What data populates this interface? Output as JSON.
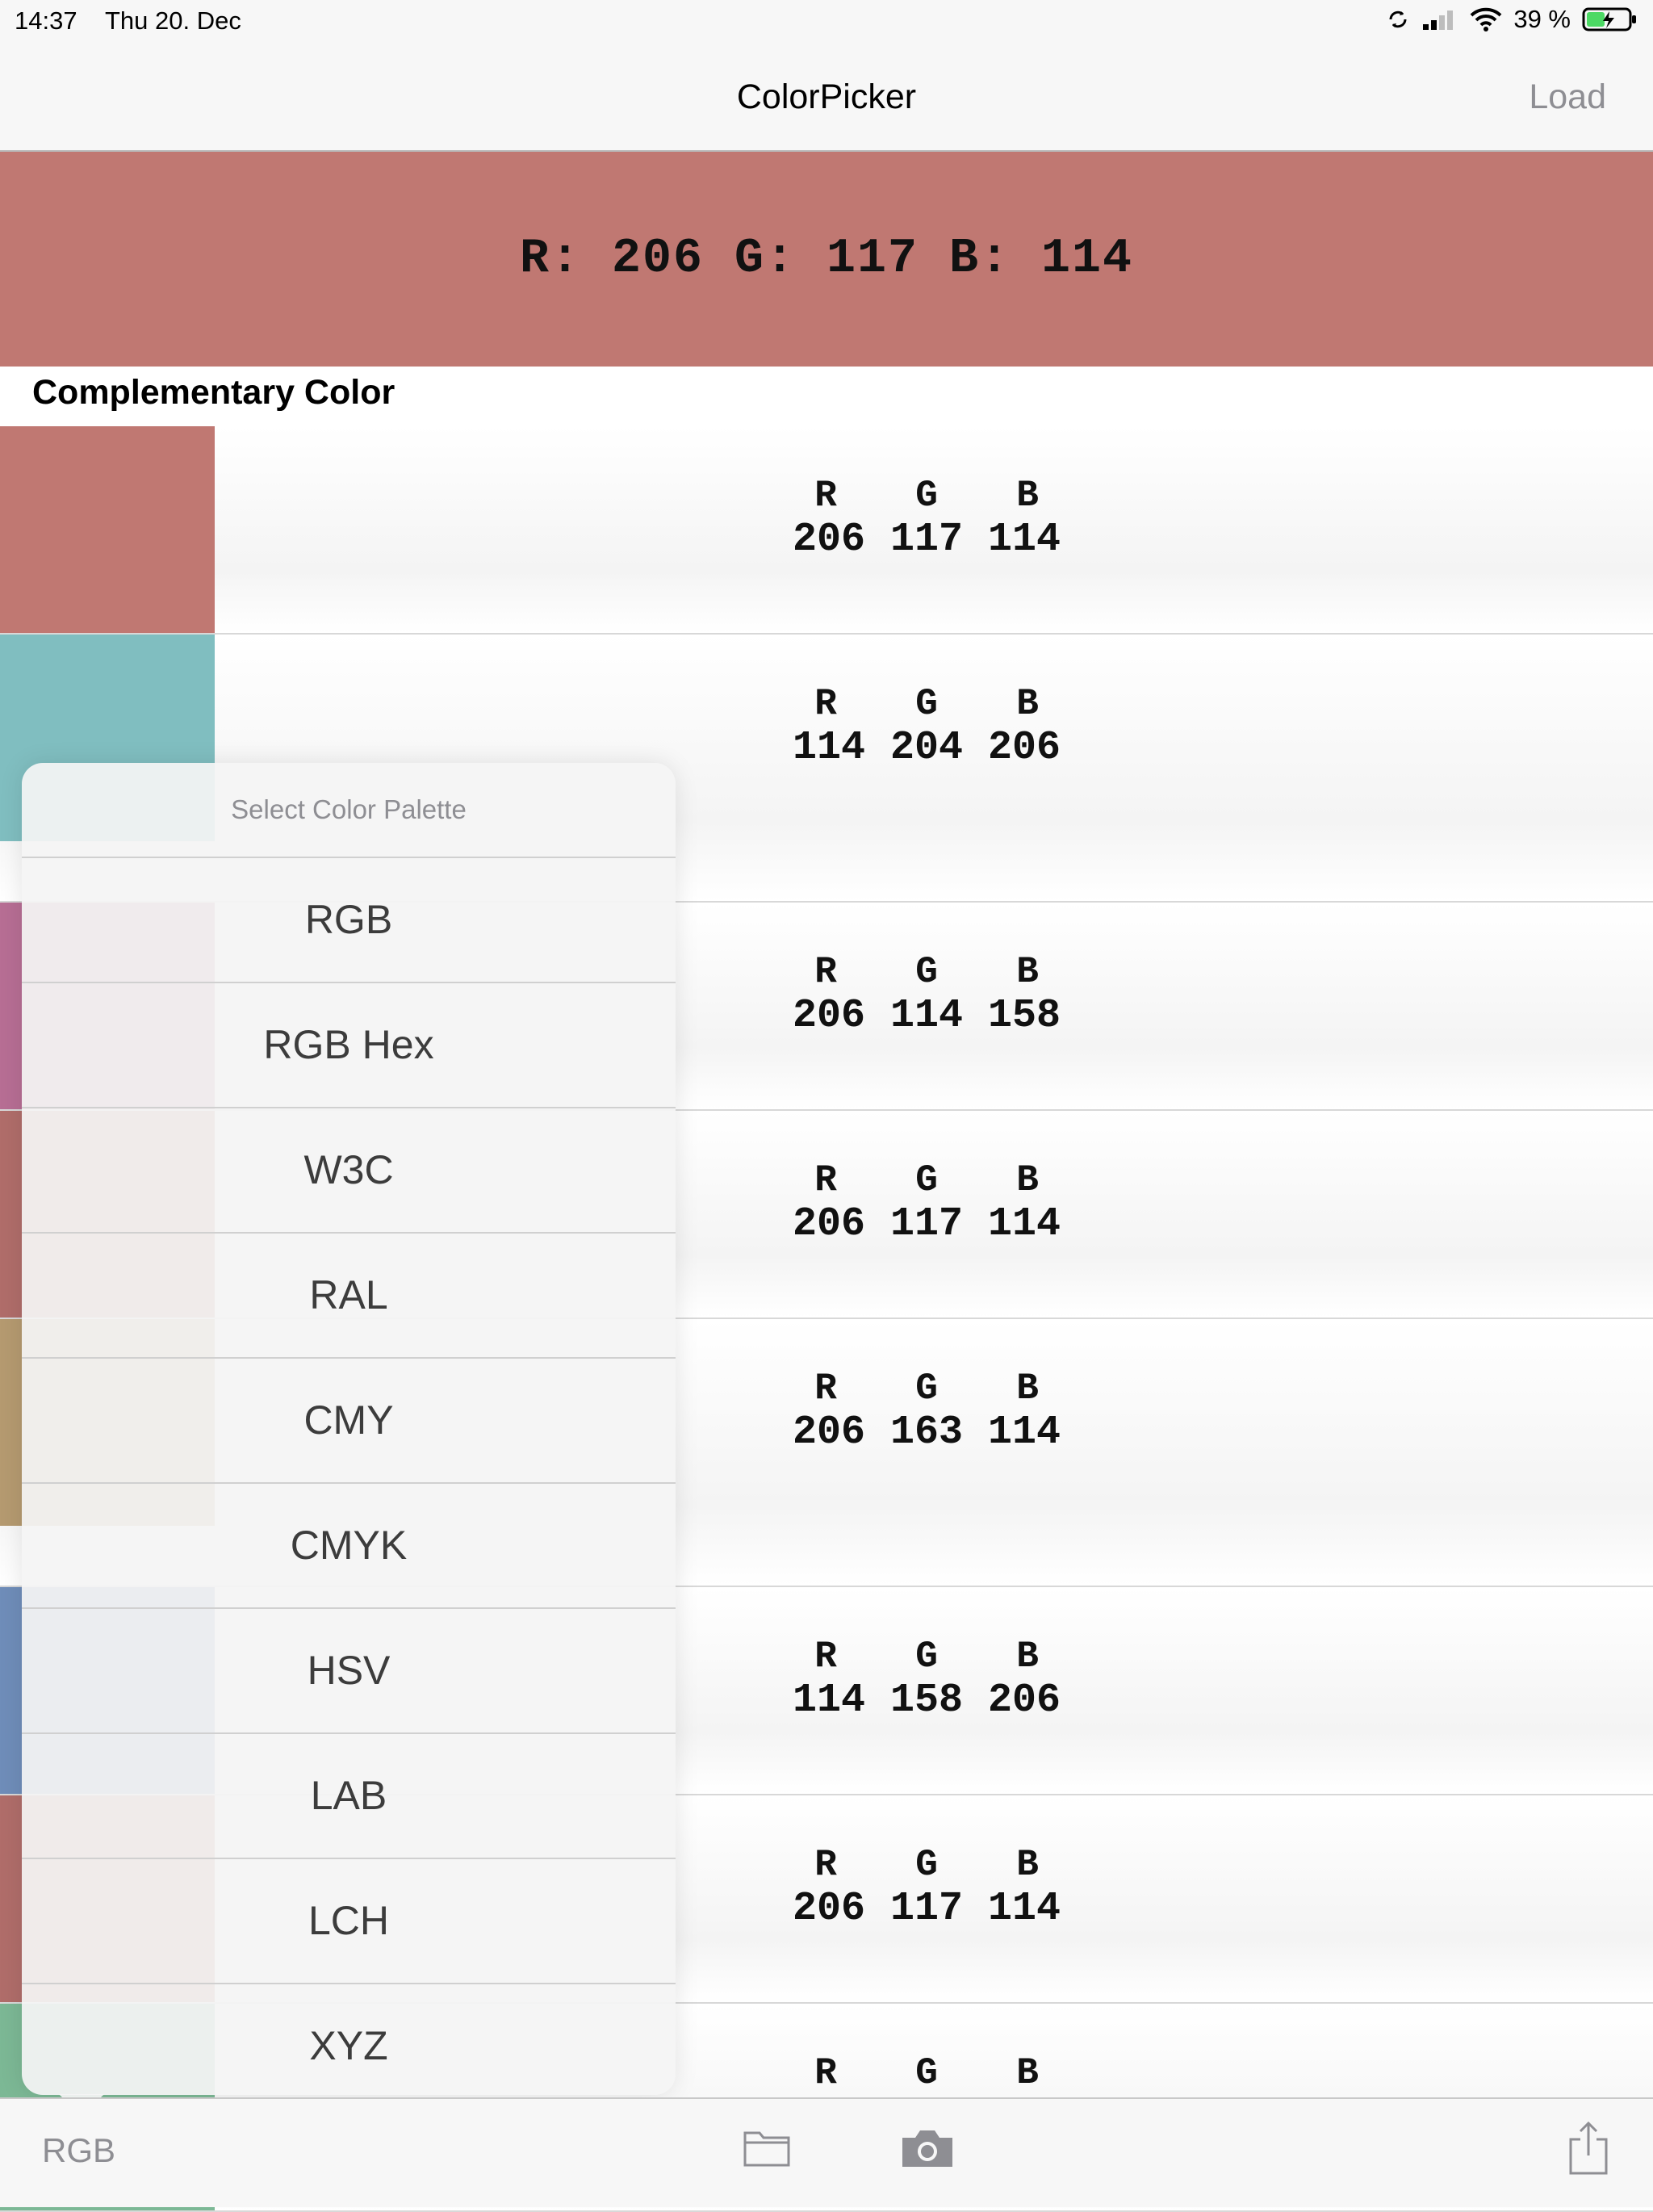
{
  "status_bar": {
    "time": "14:37",
    "date": "Thu 20. Dec",
    "battery": "39 %"
  },
  "nav": {
    "title": "ColorPicker",
    "load_label": "Load"
  },
  "banner": {
    "text": "R: 206 G: 117 B: 114",
    "color": "#c07872"
  },
  "section": {
    "header": "Complementary Color"
  },
  "rows": [
    {
      "color": "#c07872",
      "labels": [
        "R",
        "G",
        "B"
      ],
      "values": [
        "206",
        "117",
        "114"
      ]
    },
    {
      "color": "#80bec0",
      "labels": [
        "R",
        "G",
        "B"
      ],
      "values": [
        "114",
        "204",
        "206"
      ]
    },
    {
      "color": "#b76e94",
      "labels": [
        "R",
        "G",
        "B"
      ],
      "values": [
        "206",
        "114",
        "158"
      ]
    },
    {
      "color": "#b06d6a",
      "labels": [
        "R",
        "G",
        "B"
      ],
      "values": [
        "206",
        "117",
        "114"
      ]
    },
    {
      "color": "#b59a70",
      "labels": [
        "R",
        "G",
        "B"
      ],
      "values": [
        "206",
        "163",
        "114"
      ]
    },
    {
      "color": "#6f8db9",
      "labels": [
        "R",
        "G",
        "B"
      ],
      "values": [
        "114",
        "158",
        "206"
      ]
    },
    {
      "color": "#b06d6a",
      "labels": [
        "R",
        "G",
        "B"
      ],
      "values": [
        "206",
        "117",
        "114"
      ]
    },
    {
      "color": "#7cb895",
      "labels": [
        "R",
        "G",
        "B"
      ],
      "values": [
        "",
        "",
        ""
      ]
    }
  ],
  "palette_menu": {
    "title": "Select Color Palette",
    "options": [
      "RGB",
      "RGB Hex",
      "W3C",
      "RAL",
      "CMY",
      "CMYK",
      "HSV",
      "LAB",
      "LCH",
      "XYZ"
    ]
  },
  "toolbar": {
    "palette_label": "RGB",
    "icons": [
      "folder-icon",
      "camera-icon",
      "share-icon"
    ]
  }
}
